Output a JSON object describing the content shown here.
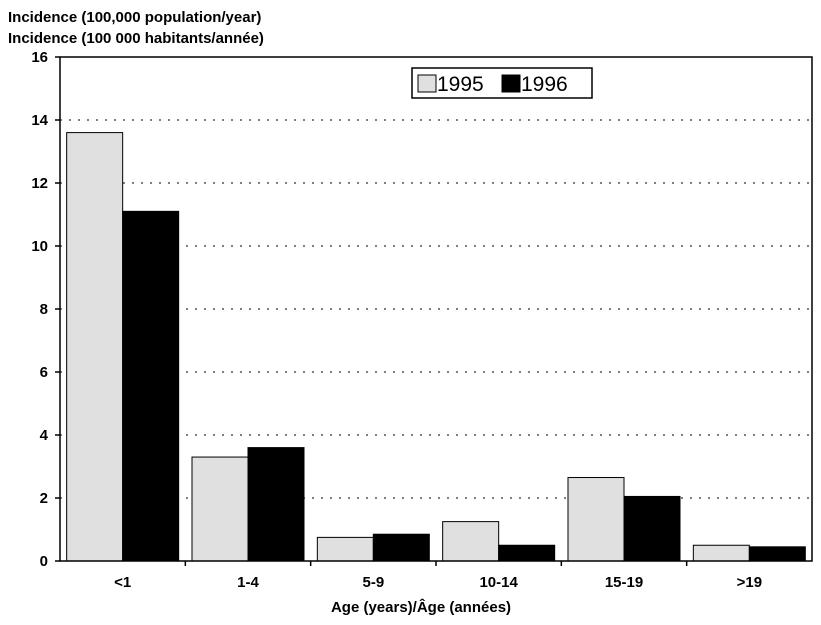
{
  "chart_data": {
    "type": "bar",
    "ylabel_lines": [
      "Incidence (100,000 population/year)",
      "Incidence (100 000 habitants/année)"
    ],
    "xlabel": "Age (years)/Âge (années)",
    "categories": [
      "<1",
      "1-4",
      "5-9",
      "10-14",
      "15-19",
      ">19"
    ],
    "series": [
      {
        "name": "1995",
        "values": [
          13.6,
          3.3,
          0.75,
          1.25,
          2.65,
          0.5
        ],
        "color": "#e0e0e0"
      },
      {
        "name": "1996",
        "values": [
          11.1,
          3.6,
          0.85,
          0.5,
          2.05,
          0.45
        ],
        "color": "#000000"
      }
    ],
    "ylim": [
      0,
      16
    ],
    "yticks": [
      0,
      2,
      4,
      6,
      8,
      10,
      12,
      14,
      16
    ],
    "grid": true,
    "legend_position": "top-right"
  }
}
